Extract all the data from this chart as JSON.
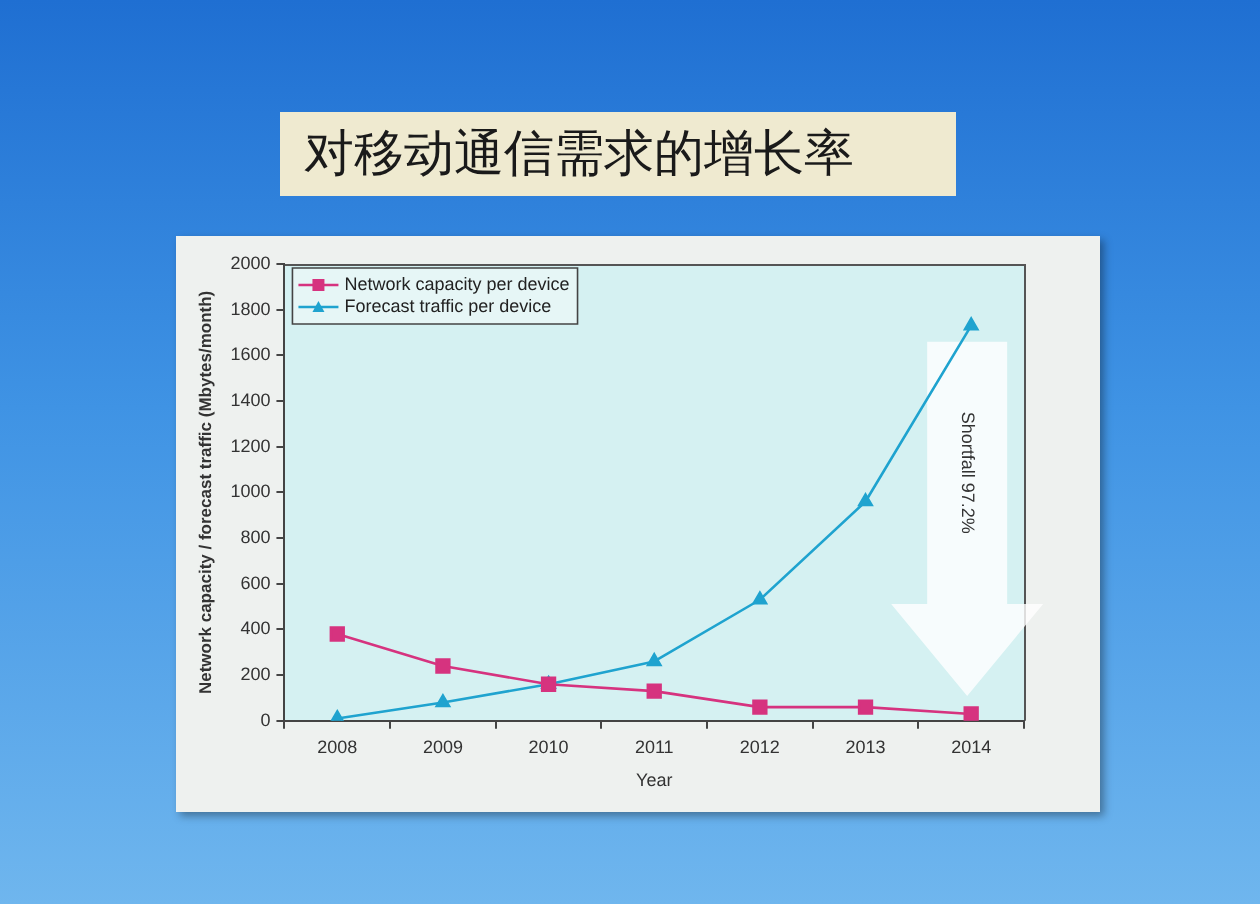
{
  "chart_data": {
    "type": "line",
    "title": "对移动通信需求的增长率",
    "xlabel": "Year",
    "ylabel": "Network capacity / forecast traffic (Mbytes/month)",
    "categories": [
      "2008",
      "2009",
      "2010",
      "2011",
      "2012",
      "2013",
      "2014"
    ],
    "series": [
      {
        "name": "Network capacity per device",
        "color": "#d6337f",
        "marker": "square",
        "values": [
          380,
          240,
          160,
          130,
          60,
          60,
          30
        ]
      },
      {
        "name": "Forecast traffic per device",
        "color": "#1fa3cf",
        "marker": "triangle",
        "values": [
          10,
          80,
          160,
          260,
          530,
          960,
          1730
        ]
      }
    ],
    "ylim": [
      0,
      2000
    ],
    "yticks": [
      0,
      200,
      400,
      600,
      800,
      1000,
      1200,
      1400,
      1600,
      1800,
      2000
    ],
    "grid": false,
    "legend": "top left",
    "line_style": "solid",
    "annotations": [
      "Shortfall 97.2%"
    ]
  }
}
